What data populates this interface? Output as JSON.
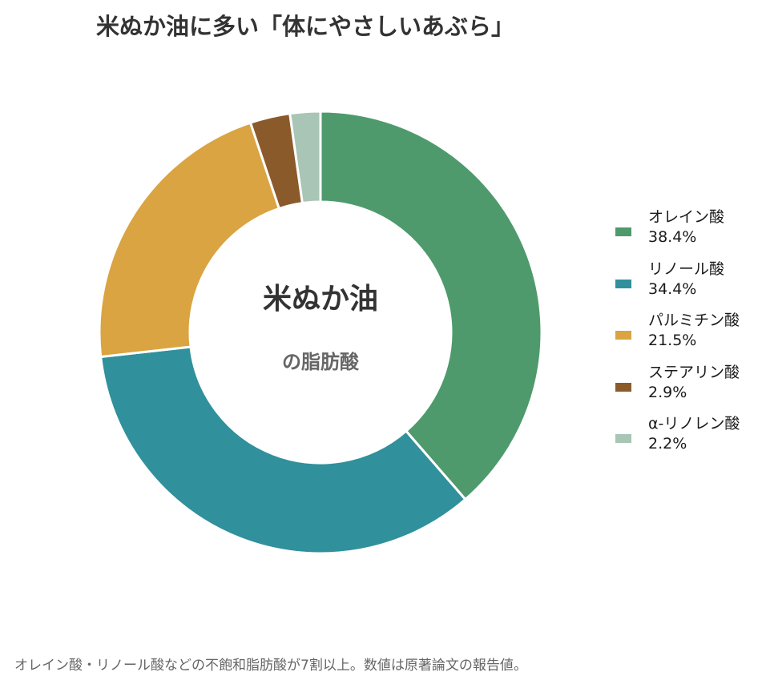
{
  "title": "米ぬか油に多い「体にやさしいあぶら」",
  "center": {
    "main": "米ぬか油",
    "sub": "の脂肪酸"
  },
  "footnote": "オレイン酸・リノール酸などの不飽和脂肪酸が7割以上。数値は原著論文の報告値。",
  "chart_data": {
    "type": "pie",
    "donut": true,
    "title": "米ぬか油に多い「体にやさしいあぶら」",
    "legend_position": "right",
    "categories": [
      "オレイン酸",
      "リノール酸",
      "パルミチン酸",
      "ステアリン酸",
      "α-リノレン酸"
    ],
    "values": [
      38.4,
      34.4,
      21.5,
      2.9,
      2.2
    ],
    "value_labels": [
      "38.4%",
      "34.4%",
      "21.5%",
      "2.9%",
      "2.2%"
    ],
    "colors": [
      "#4e9a6c",
      "#30909c",
      "#d9a441",
      "#8b5a2b",
      "#a8c5b5"
    ]
  }
}
